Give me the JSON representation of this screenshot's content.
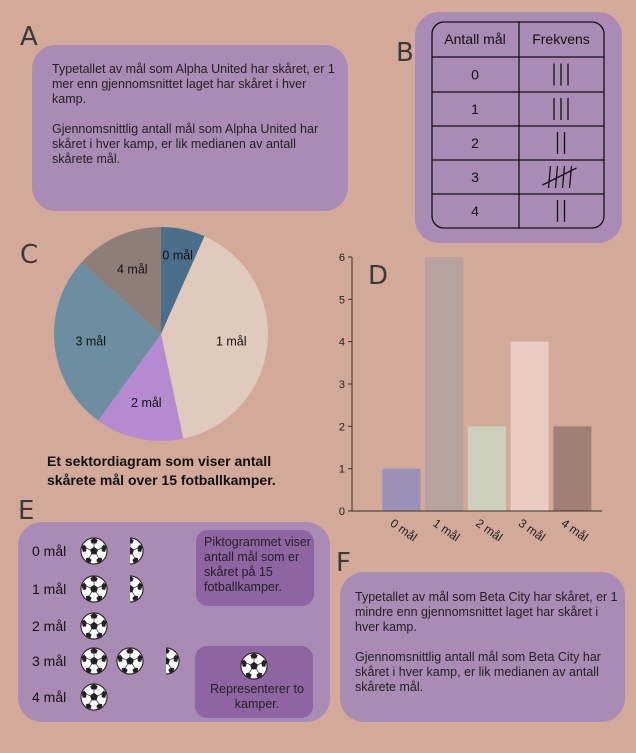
{
  "letters": [
    "A",
    "B",
    "C",
    "D",
    "E",
    "F"
  ],
  "panel_a": [
    "Typetallet av mål som Alpha United har skåret, er 1 mer enn gjennomsnittet laget har skåret i hver kamp.",
    "Gjennomsnittlig antall mål som Alpha United har skåret i hver kamp, er lik medianen av antall skårete mål."
  ],
  "panel_f": [
    "Typetallet av mål som Beta City har skåret, er 1 mindre enn gjennomsnittet laget har skåret i hver kamp.",
    "Gjennomsnittlig antall mål som Beta City har skåret i hver kamp, er lik medianen av antall skårete mål."
  ],
  "table": {
    "headers": [
      "Antall mål",
      "Frekvens"
    ],
    "goals": [
      "0",
      "1",
      "2",
      "3",
      "4"
    ],
    "tally": [
      3,
      3,
      2,
      5,
      2
    ]
  },
  "chart_data": [
    {
      "type": "pie",
      "categories": [
        "0 mål",
        "1 mål",
        "2 mål",
        "3 mål",
        "4 mål"
      ],
      "values": [
        1,
        6,
        2,
        4,
        2
      ],
      "colors": [
        "#4b6f8a",
        "#e0c9bd",
        "#b68ad0",
        "#6c8ea0",
        "#8d7e78"
      ],
      "caption": "Et sektordiagram som viser antall skårete  mål over 15 fotballkamper."
    },
    {
      "type": "bar",
      "categories": [
        "0 mål",
        "1 mål",
        "2 mål",
        "3 mål",
        "4 mål"
      ],
      "values": [
        1,
        6,
        2,
        4,
        2
      ],
      "colors": [
        "#9c90b8",
        "#b8a29d",
        "#cdd0bc",
        "#e9cbc4",
        "#a17f76"
      ],
      "ylim": [
        0,
        6
      ],
      "yticks": [
        0,
        1,
        2,
        3,
        4,
        5,
        6
      ]
    }
  ],
  "pictogram": {
    "labels": [
      "0 mål",
      "1 mål",
      "2 mål",
      "3 mål",
      "4 mål"
    ],
    "values": [
      1.5,
      1.5,
      1,
      2.5,
      1
    ],
    "note": "Piktogrammet viser antall mål som er skåret på 15 fotballkamper.",
    "key": "Representerer to kamper."
  }
}
